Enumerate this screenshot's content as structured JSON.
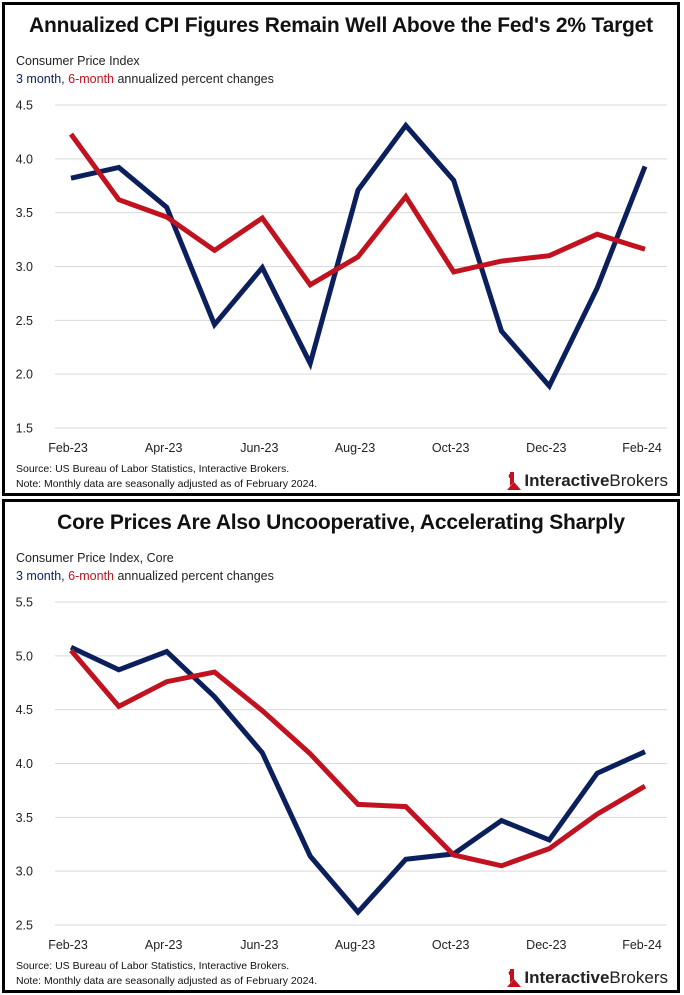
{
  "colors": {
    "three_month": "#0b1f5c",
    "six_month": "#c1121f",
    "grid": "#d9d9d9"
  },
  "chart_data": [
    {
      "type": "line",
      "title": "Annualized CPI Figures Remain Well Above the Fed's 2% Target",
      "subtitle": "Consumer Price Index",
      "legend_a": "3 month",
      "legend_sep": ",",
      "legend_b": "6-month",
      "legend_rest": "annualized percent changes",
      "categories": [
        "Feb-23",
        "Mar-23",
        "Apr-23",
        "May-23",
        "Jun-23",
        "Jul-23",
        "Aug-23",
        "Sep-23",
        "Oct-23",
        "Nov-23",
        "Dec-23",
        "Jan-24",
        "Feb-24"
      ],
      "xtick_labels": [
        "Feb-23",
        "Apr-23",
        "Jun-23",
        "Aug-23",
        "Oct-23",
        "Dec-23",
        "Feb-24"
      ],
      "ylim": [
        1.5,
        4.5
      ],
      "yticks": [
        "1.5",
        "2.0",
        "2.5",
        "3.0",
        "3.5",
        "4.0",
        "4.5"
      ],
      "grid": true,
      "series": [
        {
          "name": "3 month",
          "color": "#0b1f5c",
          "values": [
            3.82,
            3.92,
            3.55,
            2.46,
            2.99,
            2.1,
            3.71,
            4.31,
            3.8,
            2.4,
            1.89,
            2.8,
            3.93
          ]
        },
        {
          "name": "6-month",
          "color": "#c1121f",
          "values": [
            4.23,
            3.62,
            3.46,
            3.15,
            3.45,
            2.83,
            3.09,
            3.65,
            2.95,
            3.05,
            3.1,
            3.3,
            3.16
          ]
        }
      ],
      "source": "Source: US Bureau of Labor Statistics, Interactive Brokers.",
      "note": "Note: Monthly data are seasonally adjusted as of February 2024.",
      "logo_bold": "Interactive",
      "logo_light": "Brokers"
    },
    {
      "type": "line",
      "title": "Core Prices Are Also Uncooperative, Accelerating Sharply",
      "subtitle": "Consumer Price Index, Core",
      "legend_a": "3 month",
      "legend_sep": ",",
      "legend_b": "6-month",
      "legend_rest": "annualized percent changes",
      "categories": [
        "Feb-23",
        "Mar-23",
        "Apr-23",
        "May-23",
        "Jun-23",
        "Jul-23",
        "Aug-23",
        "Sep-23",
        "Oct-23",
        "Nov-23",
        "Dec-23",
        "Jan-24",
        "Feb-24"
      ],
      "xtick_labels": [
        "Feb-23",
        "Apr-23",
        "Jun-23",
        "Aug-23",
        "Oct-23",
        "Dec-23",
        "Feb-24"
      ],
      "ylim": [
        2.5,
        5.5
      ],
      "yticks": [
        "2.5",
        "3.0",
        "3.5",
        "4.0",
        "4.5",
        "5.0",
        "5.5"
      ],
      "grid": true,
      "series": [
        {
          "name": "3 month",
          "color": "#0b1f5c",
          "values": [
            5.08,
            4.87,
            5.04,
            4.62,
            4.1,
            3.14,
            2.62,
            3.11,
            3.16,
            3.47,
            3.29,
            3.91,
            4.11
          ]
        },
        {
          "name": "6-month",
          "color": "#c1121f",
          "values": [
            5.05,
            4.53,
            4.76,
            4.85,
            4.49,
            4.09,
            3.62,
            3.6,
            3.15,
            3.05,
            3.21,
            3.53,
            3.79
          ]
        }
      ],
      "source": "Source: US Bureau of Labor Statistics, Interactive Brokers.",
      "note": "Note: Monthly data are seasonally adjusted as of February 2024.",
      "logo_bold": "Interactive",
      "logo_light": "Brokers"
    }
  ]
}
